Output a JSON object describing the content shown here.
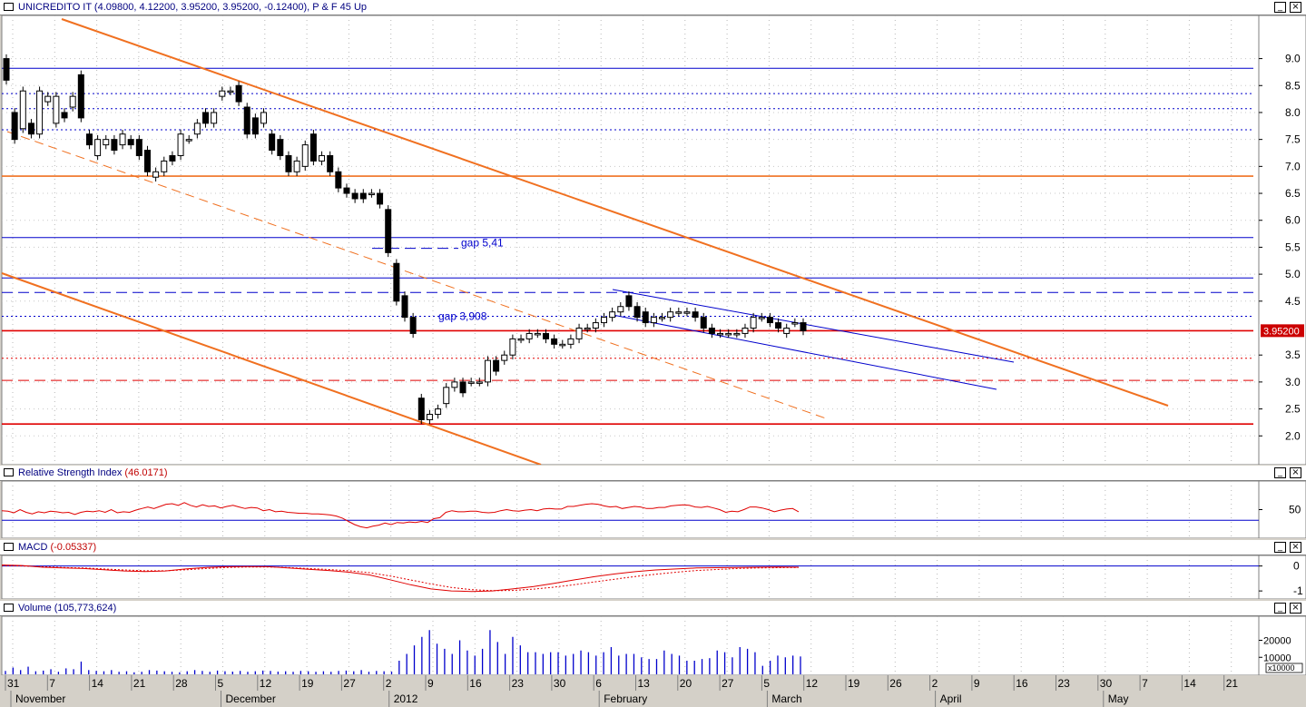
{
  "price_pane": {
    "title": "UNICREDITO IT (4.09800, 4.12200, 3.95200, 3.95200, -0.12400), P & F 45 Up"
  },
  "rsi_pane": {
    "label": "Relative Strength Index",
    "value": "(46.0171)"
  },
  "macd_pane": {
    "label": "MACD",
    "value": "(-0.05337)"
  },
  "volume_pane": {
    "label": "Volume",
    "value": "(105,773,624)"
  },
  "colors": {
    "up_candle": "#ffffff",
    "down_candle": "#000000",
    "blue_line": "#0000cc",
    "red_line": "#e00000",
    "orange_line": "#f07020",
    "last_price_badge": "#cc0000",
    "background": "#ffffff",
    "panel": "#d4d0c8"
  },
  "chart_data": [
    {
      "id": "price",
      "type": "candlestick",
      "title": "UNICREDITO IT (4.09800, 4.12200, 3.95200, 3.95200, -0.12400), P & F 45 Up",
      "ylim": [
        1.55,
        9.7
      ],
      "y_ticks": [
        {
          "v": 9.0,
          "label": "9.0"
        },
        {
          "v": 8.5,
          "label": "8.5"
        },
        {
          "v": 8.0,
          "label": "8.0"
        },
        {
          "v": 7.5,
          "label": "7.5"
        },
        {
          "v": 7.0,
          "label": "7.0"
        },
        {
          "v": 6.5,
          "label": "6.5"
        },
        {
          "v": 6.0,
          "label": "6.0"
        },
        {
          "v": 5.5,
          "label": "5.5"
        },
        {
          "v": 5.0,
          "label": "5.0"
        },
        {
          "v": 4.5,
          "label": "4.5"
        },
        {
          "v": 3.5,
          "label": "3.5"
        },
        {
          "v": 3.0,
          "label": "3.0"
        },
        {
          "v": 2.5,
          "label": "2.5"
        },
        {
          "v": 2.0,
          "label": "2.0"
        }
      ],
      "last_price": {
        "v": 3.952,
        "label": "3.95200"
      },
      "candles": [
        [
          9.0,
          8.6
        ],
        [
          8.0,
          7.5
        ],
        [
          7.7,
          8.4
        ],
        [
          7.8,
          7.6
        ],
        [
          7.6,
          8.4
        ],
        [
          8.2,
          8.3
        ],
        [
          7.8,
          8.3
        ],
        [
          8.0,
          7.9
        ],
        [
          8.1,
          8.3
        ],
        [
          8.7,
          7.9
        ],
        [
          7.6,
          7.4
        ],
        [
          7.2,
          7.5
        ],
        [
          7.4,
          7.5
        ],
        [
          7.5,
          7.3
        ],
        [
          7.4,
          7.6
        ],
        [
          7.5,
          7.4
        ],
        [
          7.5,
          7.2
        ],
        [
          7.3,
          6.9
        ],
        [
          6.8,
          6.9
        ],
        [
          6.9,
          7.1
        ],
        [
          7.2,
          7.1
        ],
        [
          7.2,
          7.6
        ],
        [
          7.5,
          7.5
        ],
        [
          7.6,
          7.8
        ],
        [
          8.0,
          7.8
        ],
        [
          7.8,
          8.0
        ],
        [
          8.3,
          8.4
        ],
        [
          8.4,
          8.4
        ],
        [
          8.5,
          8.2
        ],
        [
          8.1,
          7.6
        ],
        [
          7.9,
          7.6
        ],
        [
          7.8,
          8.0
        ],
        [
          7.6,
          7.3
        ],
        [
          7.5,
          7.2
        ],
        [
          7.2,
          6.9
        ],
        [
          6.9,
          7.1
        ],
        [
          7.0,
          7.4
        ],
        [
          7.6,
          7.1
        ],
        [
          7.1,
          7.2
        ],
        [
          7.2,
          6.9
        ],
        [
          6.9,
          6.6
        ],
        [
          6.6,
          6.5
        ],
        [
          6.5,
          6.4
        ],
        [
          6.5,
          6.4
        ],
        [
          6.5,
          6.5
        ],
        [
          6.5,
          6.3
        ],
        [
          6.2,
          5.4
        ],
        [
          5.2,
          4.5
        ],
        [
          4.6,
          4.2
        ],
        [
          4.2,
          3.9
        ],
        [
          2.7,
          2.3
        ],
        [
          2.3,
          2.4
        ],
        [
          2.4,
          2.5
        ],
        [
          2.6,
          2.9
        ],
        [
          2.9,
          3.0
        ],
        [
          3.0,
          2.8
        ],
        [
          3.0,
          3.0
        ],
        [
          3.0,
          3.0
        ],
        [
          3.0,
          3.4
        ],
        [
          3.4,
          3.2
        ],
        [
          3.4,
          3.5
        ],
        [
          3.5,
          3.8
        ],
        [
          3.8,
          3.8
        ],
        [
          3.8,
          3.9
        ],
        [
          3.9,
          3.9
        ],
        [
          3.9,
          3.8
        ],
        [
          3.8,
          3.7
        ],
        [
          3.7,
          3.7
        ],
        [
          3.7,
          3.8
        ],
        [
          3.8,
          4.0
        ],
        [
          4.0,
          4.0
        ],
        [
          4.0,
          4.1
        ],
        [
          4.1,
          4.2
        ],
        [
          4.2,
          4.3
        ],
        [
          4.3,
          4.4
        ],
        [
          4.6,
          4.4
        ],
        [
          4.4,
          4.2
        ],
        [
          4.3,
          4.1
        ],
        [
          4.1,
          4.2
        ],
        [
          4.2,
          4.2
        ],
        [
          4.2,
          4.3
        ],
        [
          4.3,
          4.3
        ],
        [
          4.3,
          4.3
        ],
        [
          4.3,
          4.2
        ],
        [
          4.2,
          4.0
        ],
        [
          4.0,
          3.9
        ],
        [
          3.9,
          3.9
        ],
        [
          3.9,
          3.9
        ],
        [
          3.9,
          3.9
        ],
        [
          3.9,
          4.0
        ],
        [
          4.0,
          4.2
        ],
        [
          4.2,
          4.2
        ],
        [
          4.2,
          4.1
        ],
        [
          4.1,
          4.0
        ],
        [
          3.9,
          4.0
        ],
        [
          4.1,
          4.1
        ],
        [
          4.1,
          3.95
        ]
      ],
      "horizontal_lines": [
        {
          "v": 8.82,
          "color": "blue",
          "style": "solid"
        },
        {
          "v": 8.35,
          "color": "blue",
          "style": "dotted"
        },
        {
          "v": 8.07,
          "color": "blue",
          "style": "dotted"
        },
        {
          "v": 7.68,
          "color": "blue",
          "style": "dotted"
        },
        {
          "v": 6.82,
          "color": "orange",
          "style": "solid"
        },
        {
          "v": 5.68,
          "color": "blue",
          "style": "solid"
        },
        {
          "v": 4.93,
          "color": "blue",
          "style": "solid"
        },
        {
          "v": 4.66,
          "color": "blue",
          "style": "dashed"
        },
        {
          "v": 4.22,
          "color": "blue",
          "style": "dotted"
        },
        {
          "v": 3.95,
          "color": "red",
          "style": "solid"
        },
        {
          "v": 3.44,
          "color": "red",
          "style": "dotted"
        },
        {
          "v": 3.03,
          "color": "red",
          "style": "dashed"
        },
        {
          "v": 2.22,
          "color": "red",
          "style": "solid"
        }
      ],
      "annotations": [
        {
          "text": "gap 5,41",
          "v": 5.48
        },
        {
          "text": "gap 3,908",
          "v": 4.22
        }
      ]
    },
    {
      "id": "rsi",
      "type": "line",
      "series_name": "Relative Strength Index",
      "last_value": "46.0171",
      "ylim": [
        0,
        100
      ],
      "y_ticks": [
        {
          "v": 50,
          "label": "50"
        }
      ],
      "reference_line": 30,
      "values": [
        48,
        47,
        44,
        50,
        45,
        42,
        46,
        44,
        47,
        46,
        44,
        45,
        41,
        45,
        47,
        46,
        48,
        45,
        50,
        44,
        46,
        45,
        49,
        52,
        55,
        52,
        56,
        60,
        61,
        58,
        63,
        58,
        55,
        59,
        56,
        57,
        53,
        56,
        58,
        55,
        52,
        54,
        53,
        48,
        50,
        46,
        47,
        45,
        44,
        43,
        43,
        42,
        42,
        41,
        40,
        38,
        34,
        28,
        22,
        18,
        16,
        19,
        21,
        25,
        22,
        26,
        25,
        27,
        26,
        28,
        26,
        33,
        35,
        45,
        48,
        46,
        46,
        47,
        47,
        45,
        44,
        45,
        48,
        50,
        48,
        47,
        49,
        50,
        48,
        51,
        52,
        51,
        51,
        56,
        56,
        58,
        60,
        61,
        60,
        57,
        55,
        56,
        52,
        54,
        56,
        55,
        52,
        52,
        54,
        54,
        57,
        58,
        59,
        58,
        55,
        54,
        56,
        53,
        50,
        45,
        47,
        46,
        50,
        55,
        55,
        53,
        50,
        46,
        49,
        51,
        52,
        46
      ]
    },
    {
      "id": "macd",
      "type": "line",
      "series_name": "MACD",
      "last_value": "-0.05337",
      "ylim": [
        -1.25,
        0.35
      ],
      "y_ticks": [
        {
          "v": 0,
          "label": "0"
        },
        {
          "v": -1,
          "label": "-1"
        }
      ],
      "macd": [
        0.04,
        0.02,
        -0.05,
        -0.08,
        -0.1,
        -0.15,
        -0.2,
        -0.22,
        -0.2,
        -0.12,
        -0.06,
        -0.03,
        -0.02,
        -0.03,
        -0.08,
        -0.13,
        -0.18,
        -0.25,
        -0.36,
        -0.55,
        -0.75,
        -0.92,
        -1.0,
        -1.02,
        -1.0,
        -0.92,
        -0.83,
        -0.7,
        -0.56,
        -0.43,
        -0.32,
        -0.23,
        -0.16,
        -0.12,
        -0.08,
        -0.07,
        -0.06,
        -0.05,
        -0.04,
        -0.05
      ],
      "signal": [
        0.02,
        0.0,
        -0.03,
        -0.06,
        -0.08,
        -0.12,
        -0.16,
        -0.19,
        -0.19,
        -0.15,
        -0.1,
        -0.06,
        -0.04,
        -0.04,
        -0.06,
        -0.1,
        -0.14,
        -0.19,
        -0.27,
        -0.4,
        -0.56,
        -0.72,
        -0.86,
        -0.95,
        -0.99,
        -0.98,
        -0.93,
        -0.85,
        -0.75,
        -0.64,
        -0.53,
        -0.42,
        -0.33,
        -0.25,
        -0.18,
        -0.14,
        -0.1,
        -0.08,
        -0.07,
        -0.06
      ],
      "zero_line": 0
    },
    {
      "id": "volume",
      "type": "bar",
      "series_name": "Volume",
      "last_value": "105,773,624",
      "unit_label": "x10000",
      "ylim": [
        0,
        32000
      ],
      "y_ticks": [
        {
          "v": 20000,
          "label": "20000"
        },
        {
          "v": 10000,
          "label": "10000"
        }
      ],
      "values": [
        2000,
        4000,
        2500,
        4500,
        1800,
        2200,
        3000,
        1500,
        3500,
        3000,
        7500,
        2500,
        2000,
        1800,
        2500,
        1500,
        1800,
        1200,
        1500,
        2500,
        2200,
        1800,
        1500,
        1200,
        1800,
        2500,
        2000,
        1500,
        2200,
        1800,
        1600,
        2000,
        1500,
        1800,
        2200,
        2000,
        1600,
        1800,
        1500,
        2000,
        1800,
        1500,
        1800,
        1500,
        2000,
        2200,
        1800,
        2500,
        1500,
        2000,
        1800,
        1600,
        8000,
        12000,
        17000,
        22000,
        26000,
        18000,
        15000,
        12000,
        20000,
        14000,
        11000,
        15000,
        26000,
        19000,
        12000,
        22000,
        17000,
        13000,
        13000,
        12000,
        13000,
        13000,
        11000,
        12000,
        14000,
        13000,
        11000,
        13000,
        16000,
        11000,
        12000,
        12000,
        10000,
        9000,
        9000,
        14000,
        12000,
        11000,
        8000,
        8000,
        9000,
        9500,
        14000,
        13000,
        10000,
        16000,
        15000,
        13000,
        5000,
        8000,
        11000,
        10000,
        11000,
        10500
      ],
      "x_ticks": [
        {
          "label": "31"
        },
        {
          "label": "7"
        },
        {
          "label": "14"
        },
        {
          "label": "21"
        },
        {
          "label": "28"
        },
        {
          "label": "5"
        },
        {
          "label": "12"
        },
        {
          "label": "19"
        },
        {
          "label": "27"
        },
        {
          "label": "2"
        },
        {
          "label": "9"
        },
        {
          "label": "16"
        },
        {
          "label": "23"
        },
        {
          "label": "30"
        },
        {
          "label": "6"
        },
        {
          "label": "13"
        },
        {
          "label": "20"
        },
        {
          "label": "27"
        },
        {
          "label": "5"
        },
        {
          "label": "12"
        },
        {
          "label": "19"
        },
        {
          "label": "26"
        },
        {
          "label": "2"
        },
        {
          "label": "9"
        },
        {
          "label": "16"
        },
        {
          "label": "23"
        },
        {
          "label": "30"
        },
        {
          "label": "7"
        },
        {
          "label": "14"
        },
        {
          "label": "21"
        }
      ],
      "month_labels": [
        {
          "label": "November",
          "tick_index": 0
        },
        {
          "label": "December",
          "tick_index": 5
        },
        {
          "label": "2012",
          "tick_index": 9
        },
        {
          "label": "February",
          "tick_index": 14
        },
        {
          "label": "March",
          "tick_index": 18
        },
        {
          "label": "April",
          "tick_index": 22
        },
        {
          "label": "May",
          "tick_index": 26
        }
      ]
    }
  ]
}
